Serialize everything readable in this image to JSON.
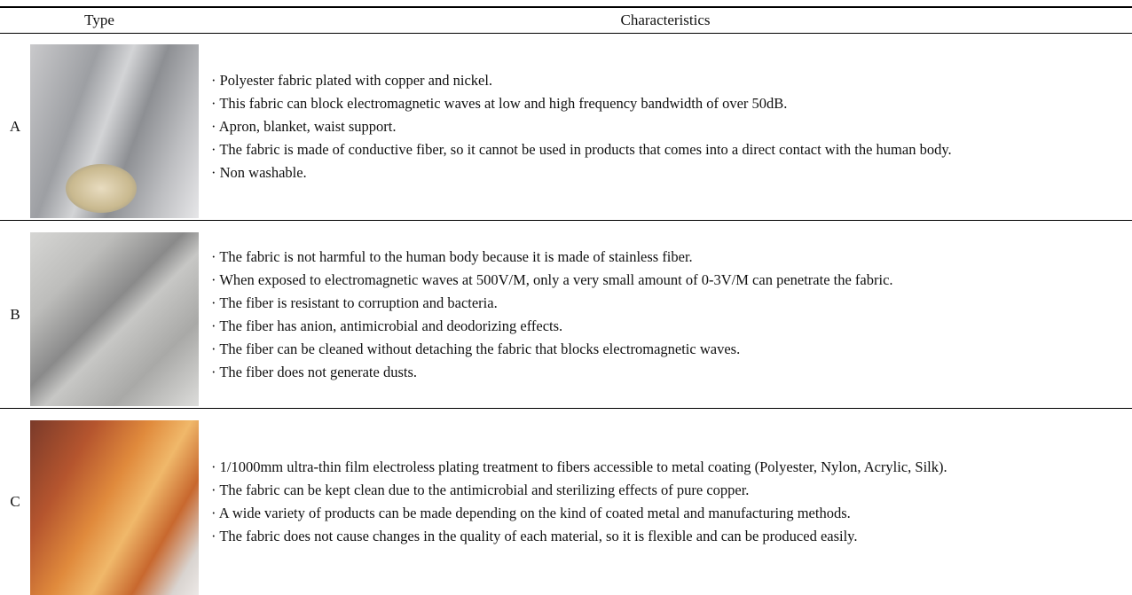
{
  "table": {
    "headers": [
      "Type",
      "Characteristics"
    ],
    "rows": [
      {
        "type": "A",
        "characteristics": [
          "· Polyester fabric plated with copper and nickel.",
          "· This fabric can block electromagnetic waves at low and high frequency bandwidth of over 50dB.",
          "· Apron, blanket, waist support.",
          "· The fabric is made of conductive fiber, so it cannot be used in products that comes into a direct contact with the human body.",
          "· Non washable."
        ]
      },
      {
        "type": "B",
        "characteristics": [
          "· The fabric is not harmful to the human body because it is made of stainless fiber.",
          "· When exposed to electromagnetic waves at 500V/M, only a very small amount of 0-3V/M can penetrate the fabric.",
          "· The fiber is resistant to corruption and bacteria.",
          "· The fiber has anion, antimicrobial and deodorizing effects.",
          "· The fiber can be cleaned without detaching the fabric that blocks electromagnetic waves.",
          "· The fiber does not generate dusts."
        ]
      },
      {
        "type": "C",
        "characteristics": [
          "· 1/1000mm ultra-thin film electroless plating treatment to fibers accessible to metal coating (Polyester, Nylon, Acrylic, Silk).",
          "· The fabric can be kept clean due to the antimicrobial and sterilizing effects of pure copper.",
          "· A wide variety of products can be made depending on the kind of coated metal and manufacturing methods.",
          "· The fabric does not cause changes in the quality of each material, so it is flexible and can be produced easily."
        ]
      }
    ]
  }
}
